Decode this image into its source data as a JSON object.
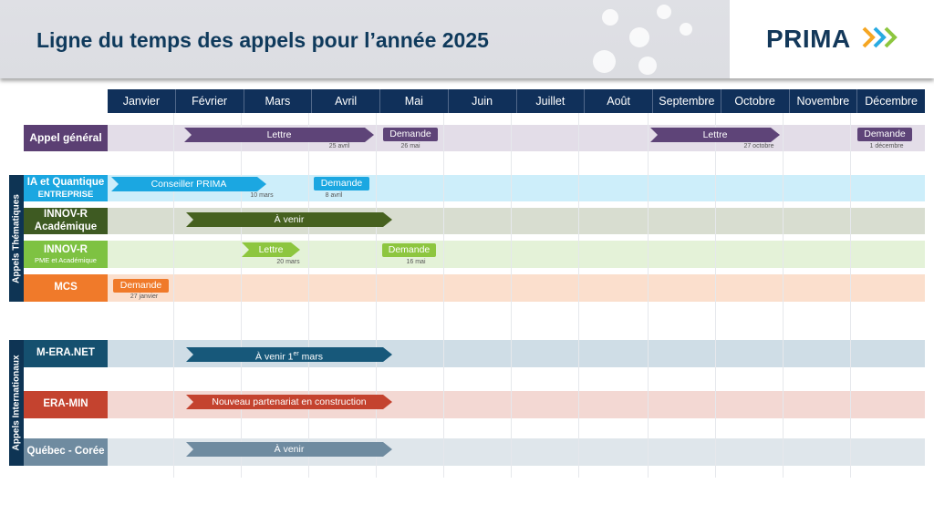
{
  "title": "Ligne du temps des appels pour l’année 2025",
  "logo": {
    "text": "PRIMA",
    "icon": "chevron-arrows-icon"
  },
  "months": [
    "Janvier",
    "Février",
    "Mars",
    "Avril",
    "Mai",
    "Juin",
    "Juillet",
    "Août",
    "Septembre",
    "Octobre",
    "Novembre",
    "Décembre"
  ],
  "groups": {
    "thematic": "Appels Thématiques",
    "international": "Appels Internationaux"
  },
  "rows": {
    "general": {
      "label": "Appel général",
      "lettre1": "Lettre",
      "lettre1_date": "25 avril",
      "demande1": "Demande",
      "demande1_date": "26 mai",
      "lettre2": "Lettre",
      "lettre2_date": "27 octobre",
      "demande2": "Demande",
      "demande2_date": "1 décembre",
      "color": "#5e4478"
    },
    "ia": {
      "label1": "IA et Quantique",
      "label2": "ENTREPRISE",
      "bar": "Conseiller PRIMA",
      "bar_date": "10 mars",
      "demande": "Demande",
      "demande_date": "8 avril",
      "color": "#1ba7e1"
    },
    "innov_acad": {
      "label1": "INNOV-R",
      "label2": "Académique",
      "bar": "À venir",
      "color": "#46611f"
    },
    "innov_pme": {
      "label1": "INNOV-R",
      "label2": "PME et Académique",
      "lettre": "Lettre",
      "lettre_date": "20 mars",
      "demande": "Demande",
      "demande_date": "16 mai",
      "color": "#8dc63f"
    },
    "mcs": {
      "label": "MCS",
      "demande": "Demande",
      "demande_date": "27 janvier",
      "color": "#f07a2a"
    },
    "mera": {
      "label": "M-ERA.NET",
      "bar": "À venir 1",
      "bar_sup": "er",
      "bar_end": " mars",
      "color": "#17587a"
    },
    "eramin": {
      "label": "ERA-MIN",
      "bar": "Nouveau partenariat en construction",
      "color": "#c4432f"
    },
    "qc": {
      "label": "Québec - Corée",
      "bar": "À venir",
      "color": "#6f8ba0"
    }
  }
}
